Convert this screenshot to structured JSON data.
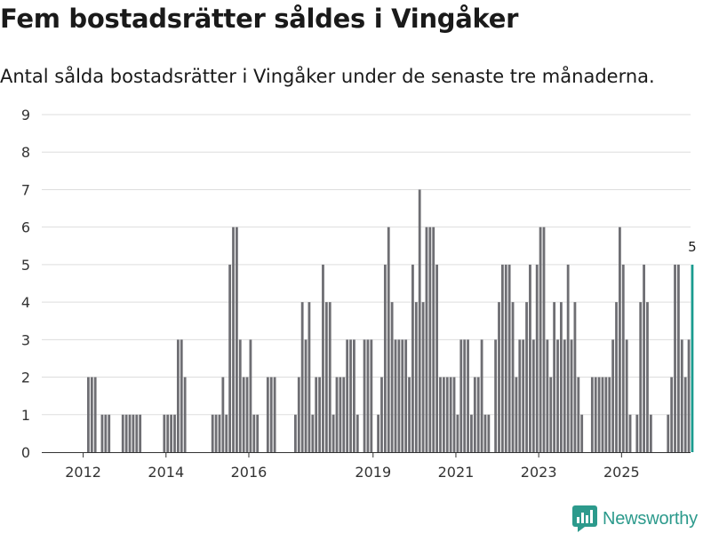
{
  "title": "Fem bostadsrätter såldes i Vingåker",
  "subtitle": "Antal sålda bostadsrätter i Vingåker under de senaste tre månaderna.",
  "brand": {
    "name": "Newsworthy",
    "logo_icon": "newsworthy-chart-logo-icon"
  },
  "colors": {
    "bar": "#6e6e73",
    "highlight": "#1a9b8f",
    "grid": "#dddddd",
    "axis": "#333333",
    "brand": "#2c9a8c"
  },
  "chart_data": {
    "type": "bar",
    "title": "Fem bostadsrätter såldes i Vingåker",
    "xlabel": "",
    "ylabel": "",
    "ylim": [
      0,
      9
    ],
    "yticks": [
      "0",
      "1",
      "2",
      "3",
      "4",
      "5",
      "6",
      "7",
      "8",
      "9"
    ],
    "x_start": "2011-01",
    "x_end": "2026-09",
    "xticks": [
      {
        "label": "2012",
        "at": 2012.0
      },
      {
        "label": "2014",
        "at": 2014.0
      },
      {
        "label": "2016",
        "at": 2016.0
      },
      {
        "label": "2019",
        "at": 2019.0
      },
      {
        "label": "2021",
        "at": 2021.0
      },
      {
        "label": "2023",
        "at": 2023.0
      },
      {
        "label": "2025",
        "at": 2025.0
      }
    ],
    "series": [
      {
        "name": "Antal sålda bostadsrätter (rullande tre månader)",
        "start": "2011-01",
        "values": [
          0,
          0,
          0,
          0,
          0,
          0,
          0,
          0,
          0,
          0,
          0,
          0,
          0,
          2,
          2,
          2,
          0,
          1,
          1,
          1,
          0,
          0,
          0,
          1,
          1,
          1,
          1,
          1,
          1,
          0,
          0,
          0,
          0,
          0,
          0,
          1,
          1,
          1,
          1,
          3,
          3,
          2,
          0,
          0,
          0,
          0,
          0,
          0,
          0,
          1,
          1,
          1,
          2,
          1,
          5,
          6,
          6,
          3,
          2,
          2,
          3,
          1,
          1,
          0,
          0,
          2,
          2,
          2,
          0,
          0,
          0,
          0,
          0,
          1,
          2,
          4,
          3,
          4,
          1,
          2,
          2,
          5,
          4,
          4,
          1,
          2,
          2,
          2,
          3,
          3,
          3,
          1,
          0,
          3,
          3,
          3,
          0,
          1,
          2,
          5,
          6,
          4,
          3,
          3,
          3,
          3,
          2,
          5,
          4,
          7,
          4,
          6,
          6,
          6,
          5,
          2,
          2,
          2,
          2,
          2,
          1,
          3,
          3,
          3,
          1,
          2,
          2,
          3,
          1,
          1,
          0,
          3,
          4,
          5,
          5,
          5,
          4,
          2,
          3,
          3,
          4,
          5,
          3,
          5,
          6,
          6,
          3,
          2,
          4,
          3,
          4,
          3,
          5,
          3,
          4,
          2,
          1,
          0,
          0,
          2,
          2,
          2,
          2,
          2,
          2,
          3,
          4,
          6,
          5,
          3,
          1,
          0,
          1,
          4,
          5,
          4,
          1,
          0,
          0,
          0,
          0,
          1,
          2,
          5,
          5,
          3,
          2,
          3,
          5
        ],
        "last_label": "5"
      }
    ]
  }
}
